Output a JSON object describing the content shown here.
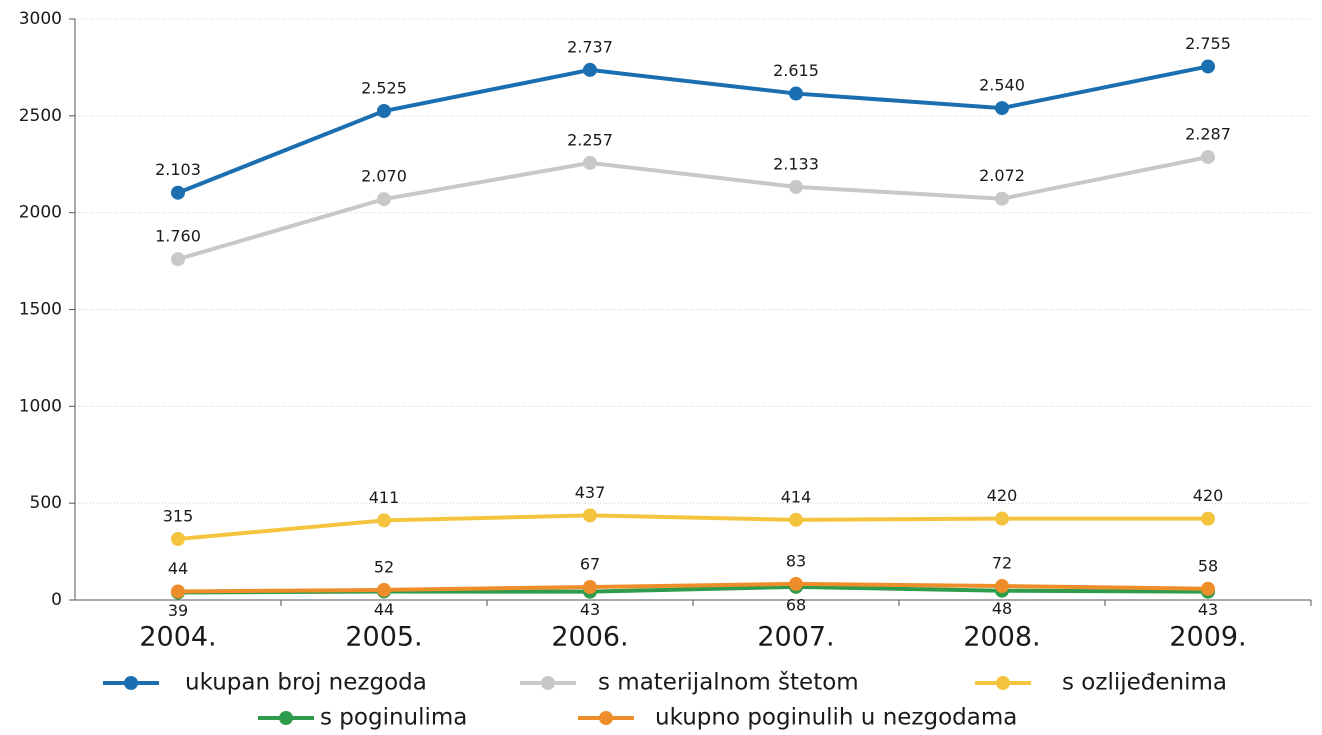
{
  "chart_data": {
    "type": "line",
    "categories": [
      "2004.",
      "2005.",
      "2006.",
      "2007.",
      "2008.",
      "2009."
    ],
    "series": [
      {
        "name": "ukupan broj nezgoda",
        "color": "#1b6fb0",
        "values": [
          2103,
          2525,
          2737,
          2615,
          2540,
          2755
        ],
        "value_labels": [
          "2.103",
          "2.525",
          "2.737",
          "2.615",
          "2.540",
          "2.755"
        ]
      },
      {
        "name": "s materijalnom štetom",
        "color": "#c6c8c9",
        "values": [
          1760,
          2070,
          2257,
          2133,
          2072,
          2287
        ],
        "value_labels": [
          "1.760",
          "2.070",
          "2.257",
          "2.133",
          "2.072",
          "2.287"
        ]
      },
      {
        "name": "s ozlijeđenima",
        "color": "#f5c43f",
        "values": [
          315,
          411,
          437,
          414,
          420,
          420
        ]
      },
      {
        "name": "s poginulima",
        "color": "#2f9c4c",
        "values": [
          39,
          44,
          43,
          68,
          48,
          43
        ]
      },
      {
        "name": "ukupno poginulih u nezgodama",
        "color": "#ee8e2b",
        "values": [
          44,
          52,
          67,
          83,
          72,
          58
        ]
      }
    ],
    "ylim": [
      0,
      3000
    ],
    "yticks": [
      0,
      500,
      1000,
      1500,
      2000,
      2500,
      3000
    ],
    "grid": true
  }
}
